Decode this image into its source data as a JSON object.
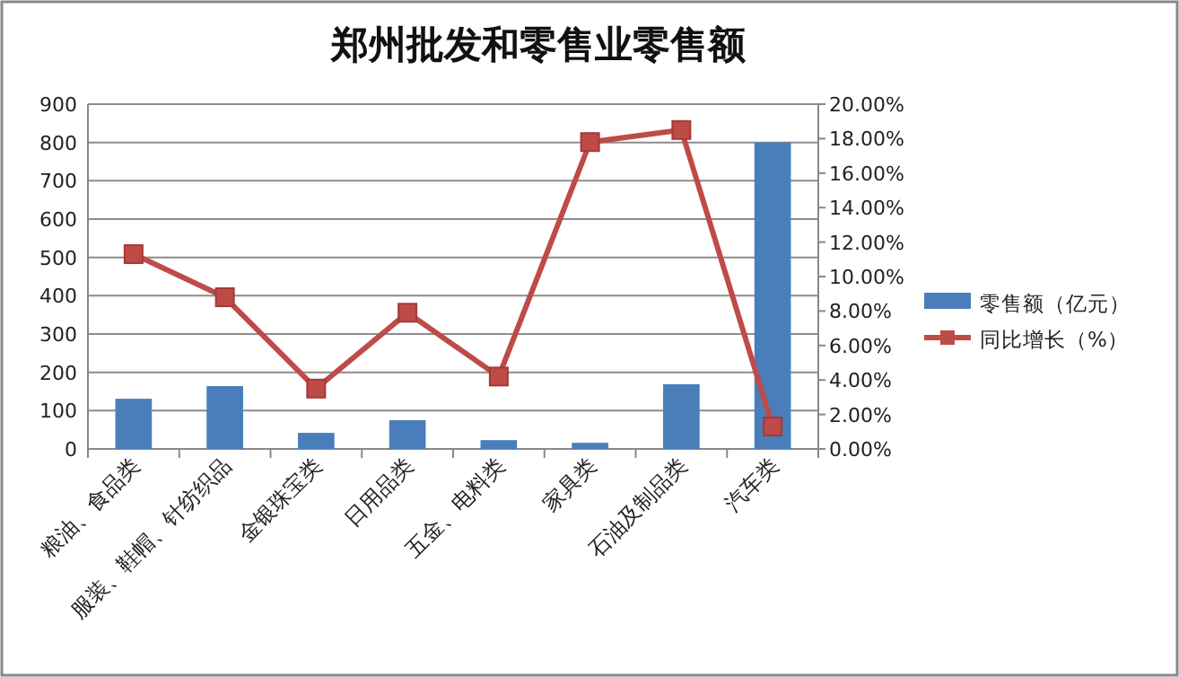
{
  "chart_data": {
    "type": "bar",
    "title": "郑州批发和零售业零售额",
    "categories": [
      "粮油、食品类",
      "服装、鞋帽、针纺织品",
      "金银珠宝类",
      "日用品类",
      "五金、电料类",
      "家具类",
      "石油及制品类",
      "汽车类"
    ],
    "series": [
      {
        "name": "零售额（亿元）",
        "color": "#4a7ebb",
        "values": [
          131,
          164,
          42,
          75,
          23,
          16,
          169,
          800
        ]
      },
      {
        "name": "同比增长（%）",
        "type": "line",
        "axis": "y2",
        "color": "#be4b48",
        "marker": "square",
        "values": [
          11.3,
          8.8,
          3.5,
          7.9,
          4.2,
          17.8,
          18.5,
          1.3
        ]
      }
    ],
    "ylim": [
      0,
      900
    ],
    "yticks": [
      0,
      100,
      200,
      300,
      400,
      500,
      600,
      700,
      800,
      900
    ],
    "y2lim": [
      0,
      20
    ],
    "y2ticks": [
      {
        "value": 0,
        "label": "0.00%"
      },
      {
        "value": 2,
        "label": "2.00%"
      },
      {
        "value": 4,
        "label": "4.00%"
      },
      {
        "value": 6,
        "label": "6.00%"
      },
      {
        "value": 8,
        "label": "8.00%"
      },
      {
        "value": 10,
        "label": "10.00%"
      },
      {
        "value": 12,
        "label": "12.00%"
      },
      {
        "value": 14,
        "label": "14.00%"
      },
      {
        "value": 16,
        "label": "16.00%"
      },
      {
        "value": 18,
        "label": "18.00%"
      },
      {
        "value": 20,
        "label": "20.00%"
      }
    ],
    "grid": "y",
    "legend": "right"
  }
}
